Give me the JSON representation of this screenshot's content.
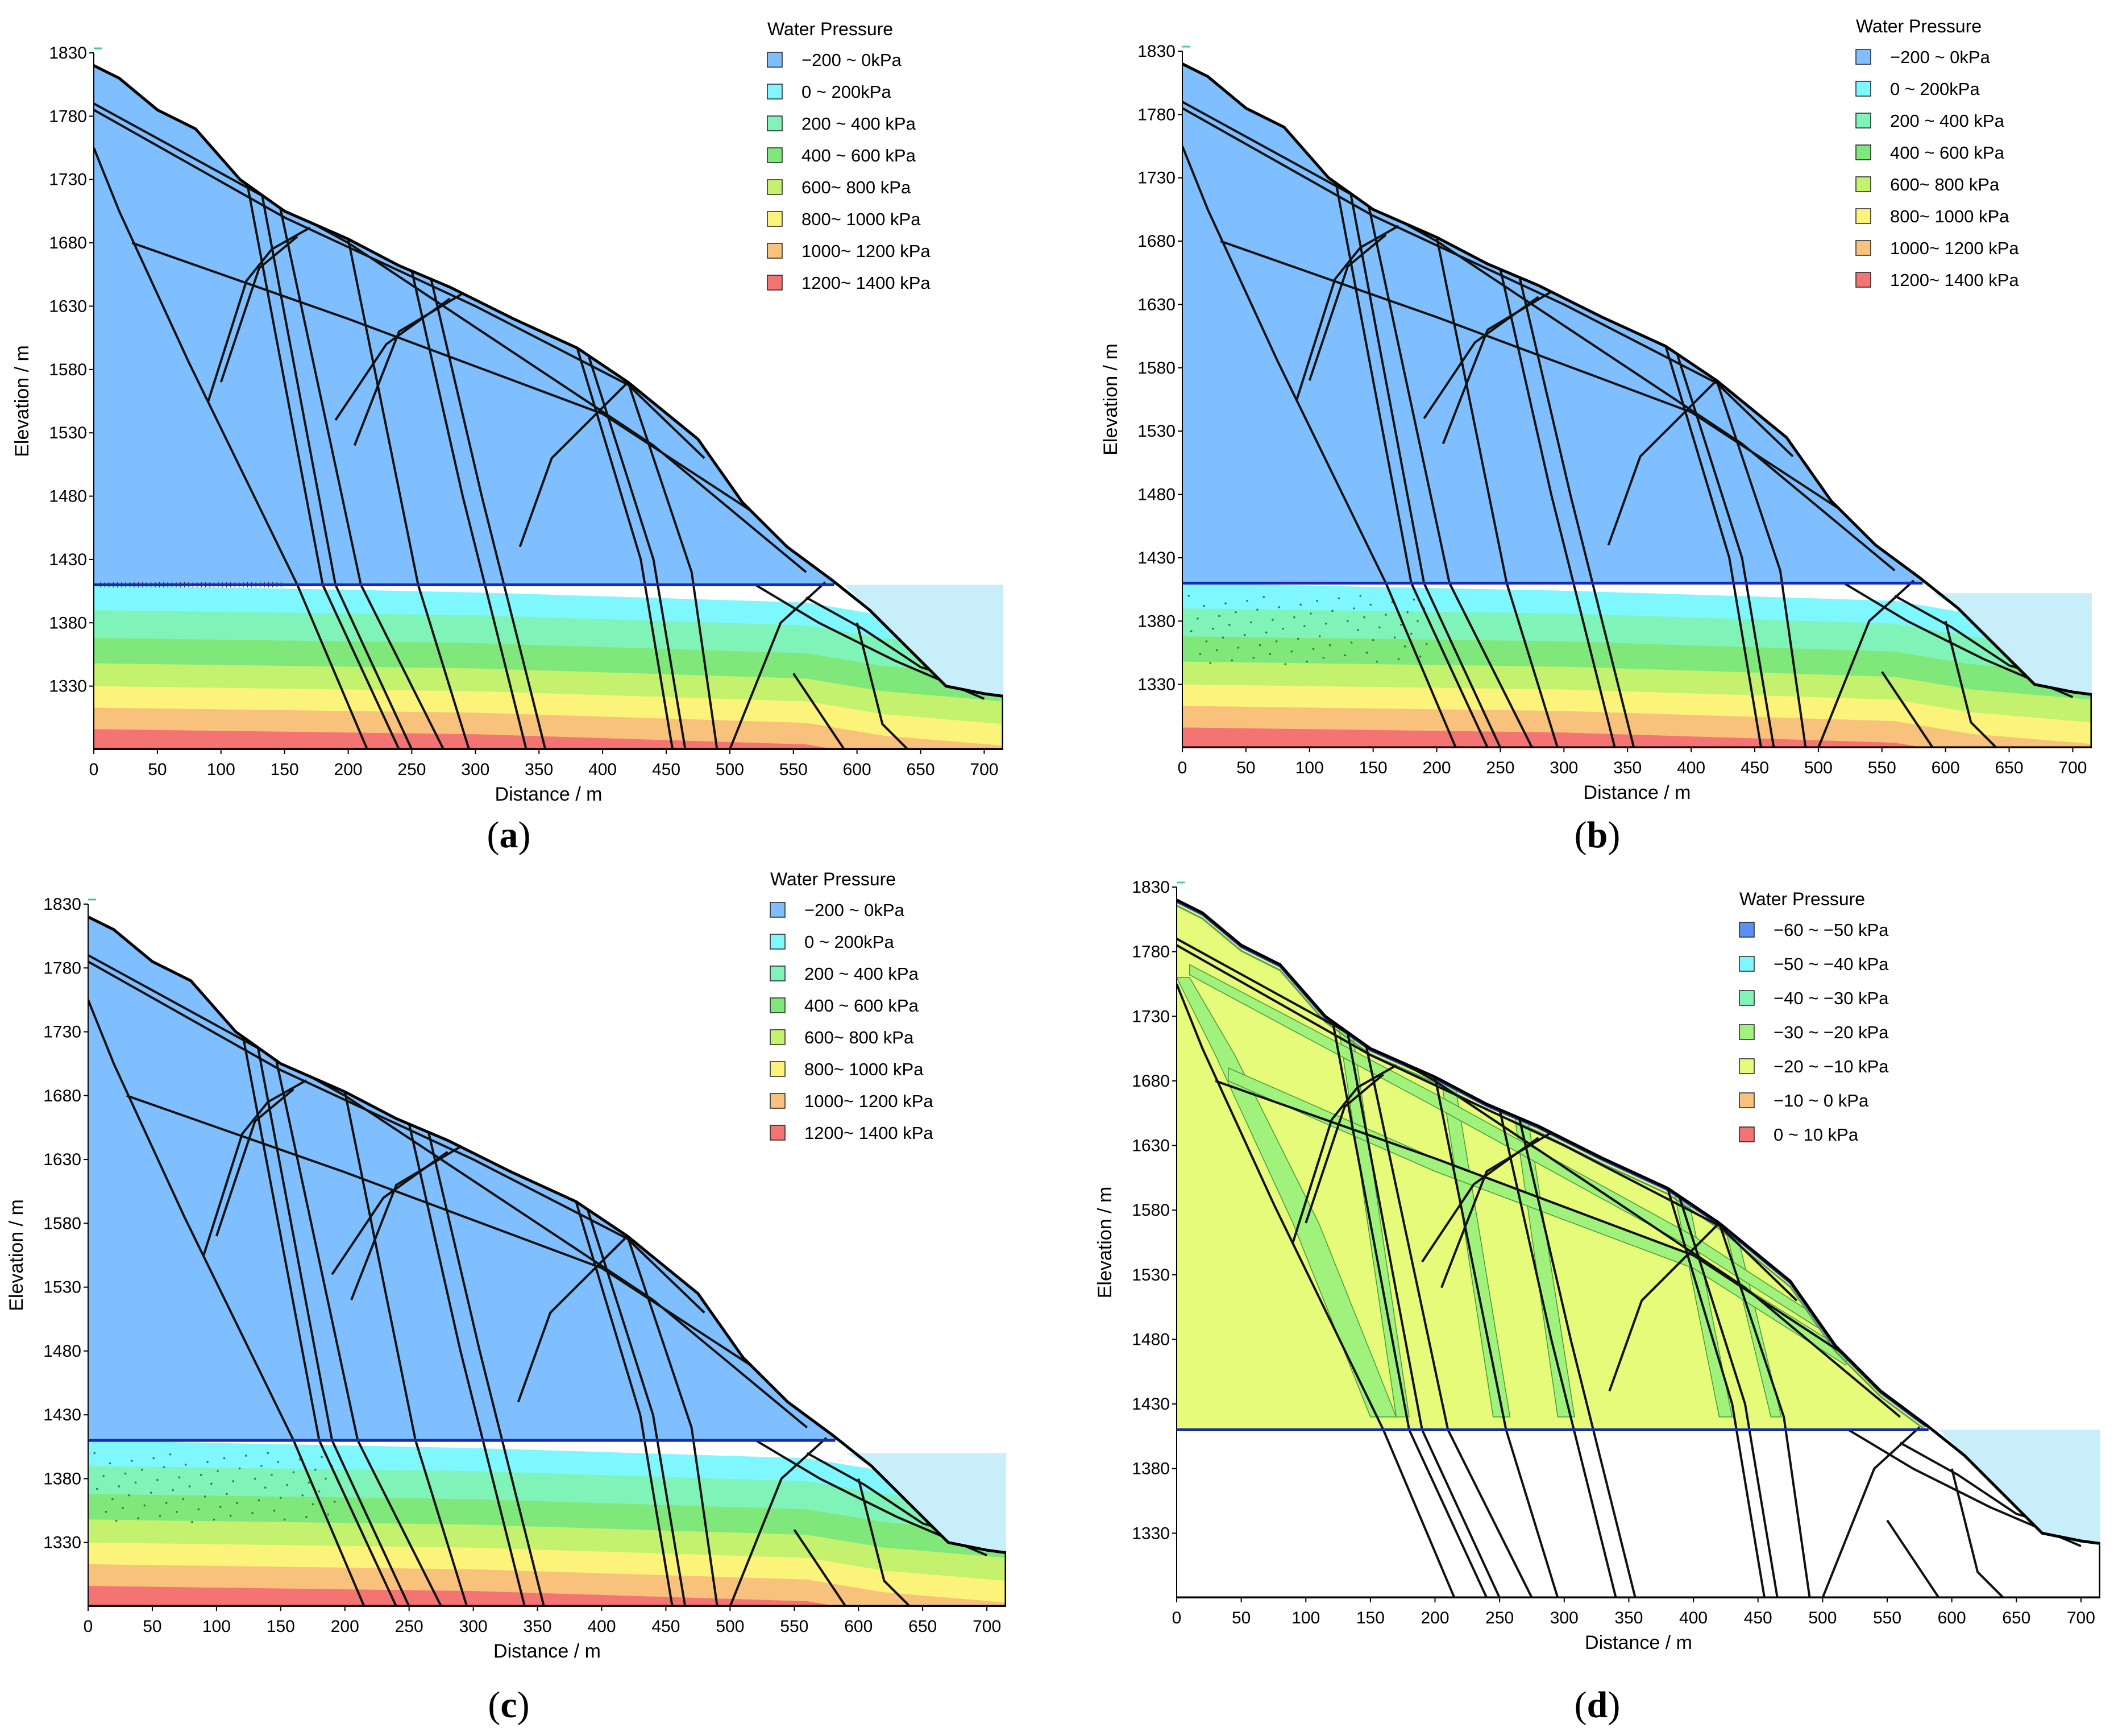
{
  "colors": {
    "unsat_blue": "#7fbfff",
    "fault_line": "#111111",
    "water_line": "#1a2bb0",
    "river": "#c8eefa",
    "d_fill": "#e6fb7a",
    "d_green": "#a0f27c",
    "d_blue_edge": "#2b38c6"
  },
  "chart_data": [
    {
      "panel": "(a)",
      "type": "area",
      "xlabel": "Distance / m",
      "ylabel": "Elevation / m",
      "xlim": [
        0,
        715
      ],
      "ylim": [
        1280,
        1830
      ],
      "x_ticks": [
        "0",
        "50",
        "100",
        "150",
        "200",
        "250",
        "300",
        "350",
        "400",
        "450",
        "500",
        "550",
        "600",
        "650",
        "700"
      ],
      "y_ticks": [
        "1830",
        "1780",
        "1730",
        "1680",
        "1630",
        "1580",
        "1530",
        "1480",
        "1430",
        "1380",
        "1330"
      ],
      "legend_title": "Water Pressure",
      "legend": [
        {
          "label": "−200 ~ 0kPa",
          "color": "#7fbfff"
        },
        {
          "label": "0 ~ 200kPa",
          "color": "#7ff7ff"
        },
        {
          "label": "200 ~ 400 kPa",
          "color": "#80f4b8"
        },
        {
          "label": "400 ~ 600 kPa",
          "color": "#80e87a"
        },
        {
          "label": "600~ 800 kPa",
          "color": "#c4f26e"
        },
        {
          "label": "800~ 1000 kPa",
          "color": "#fbf37a"
        },
        {
          "label": "1000~ 1200 kPa",
          "color": "#f8c27c"
        },
        {
          "label": "1200~ 1400 kPa",
          "color": "#f47373"
        }
      ],
      "water_table": 1410,
      "river_level": 1410
    },
    {
      "panel": "(b)",
      "type": "area",
      "xlabel": "Distance / m",
      "ylabel": "Elevation / m",
      "xlim": [
        0,
        715
      ],
      "ylim": [
        1280,
        1830
      ],
      "x_ticks": [
        "0",
        "50",
        "100",
        "150",
        "200",
        "250",
        "300",
        "350",
        "400",
        "450",
        "500",
        "550",
        "600",
        "650",
        "700"
      ],
      "y_ticks": [
        "1830",
        "1780",
        "1730",
        "1680",
        "1630",
        "1580",
        "1530",
        "1480",
        "1430",
        "1380",
        "1330"
      ],
      "legend_title": "Water Pressure",
      "legend": [
        {
          "label": "−200 ~ 0kPa",
          "color": "#7fbfff"
        },
        {
          "label": "0 ~ 200kPa",
          "color": "#7ff7ff"
        },
        {
          "label": "200 ~ 400 kPa",
          "color": "#80f4b8"
        },
        {
          "label": "400 ~ 600 kPa",
          "color": "#80e87a"
        },
        {
          "label": "600~ 800 kPa",
          "color": "#c4f26e"
        },
        {
          "label": "800~ 1000 kPa",
          "color": "#fbf37a"
        },
        {
          "label": "1000~ 1200 kPa",
          "color": "#f8c27c"
        },
        {
          "label": "1200~ 1400 kPa",
          "color": "#f47373"
        }
      ],
      "water_table": 1410,
      "river_level": 1402
    },
    {
      "panel": "(c)",
      "type": "area",
      "xlabel": "Distance / m",
      "ylabel": "Elevation / m",
      "xlim": [
        0,
        715
      ],
      "ylim": [
        1280,
        1830
      ],
      "x_ticks": [
        "0",
        "50",
        "100",
        "150",
        "200",
        "250",
        "300",
        "350",
        "400",
        "450",
        "500",
        "550",
        "600",
        "650",
        "700"
      ],
      "y_ticks": [
        "1830",
        "1780",
        "1730",
        "1680",
        "1630",
        "1580",
        "1530",
        "1480",
        "1430",
        "1380",
        "1330"
      ],
      "legend_title": "Water Pressure",
      "legend": [
        {
          "label": "−200 ~ 0kPa",
          "color": "#7fbfff"
        },
        {
          "label": "0 ~ 200kPa",
          "color": "#7ff7ff"
        },
        {
          "label": "200 ~ 400 kPa",
          "color": "#80f4b8"
        },
        {
          "label": "400 ~ 600 kPa",
          "color": "#80e87a"
        },
        {
          "label": "600~ 800 kPa",
          "color": "#c4f26e"
        },
        {
          "label": "800~ 1000 kPa",
          "color": "#fbf37a"
        },
        {
          "label": "1000~ 1200 kPa",
          "color": "#f8c27c"
        },
        {
          "label": "1200~ 1400 kPa",
          "color": "#f47373"
        }
      ],
      "water_table": 1410,
      "river_level": 1400
    },
    {
      "panel": "(d)",
      "type": "area",
      "xlabel": "Distance / m",
      "ylabel": "Elevation / m",
      "xlim": [
        0,
        715
      ],
      "ylim": [
        1280,
        1830
      ],
      "x_ticks": [
        "0",
        "50",
        "100",
        "150",
        "200",
        "250",
        "300",
        "350",
        "400",
        "450",
        "500",
        "550",
        "600",
        "650",
        "700"
      ],
      "y_ticks": [
        "1830",
        "1780",
        "1730",
        "1680",
        "1630",
        "1580",
        "1530",
        "1480",
        "1430",
        "1380",
        "1330"
      ],
      "legend_title": "Water Pressure",
      "legend": [
        {
          "label": "−60 ~ −50 kPa",
          "color": "#5b8ff5"
        },
        {
          "label": "−50 ~ −40 kPa",
          "color": "#7ff7ff"
        },
        {
          "label": "−40 ~ −30 kPa",
          "color": "#80f4b8"
        },
        {
          "label": "−30 ~ −20 kPa",
          "color": "#a0f27c"
        },
        {
          "label": "−20 ~ −10 kPa",
          "color": "#e6fb7a"
        },
        {
          "label": "−10 ~ 0 kPa",
          "color": "#f8c27c"
        },
        {
          "label": "0 ~ 10 kPa",
          "color": "#f47373"
        }
      ],
      "water_table": 1410,
      "river_level": 1410
    }
  ]
}
